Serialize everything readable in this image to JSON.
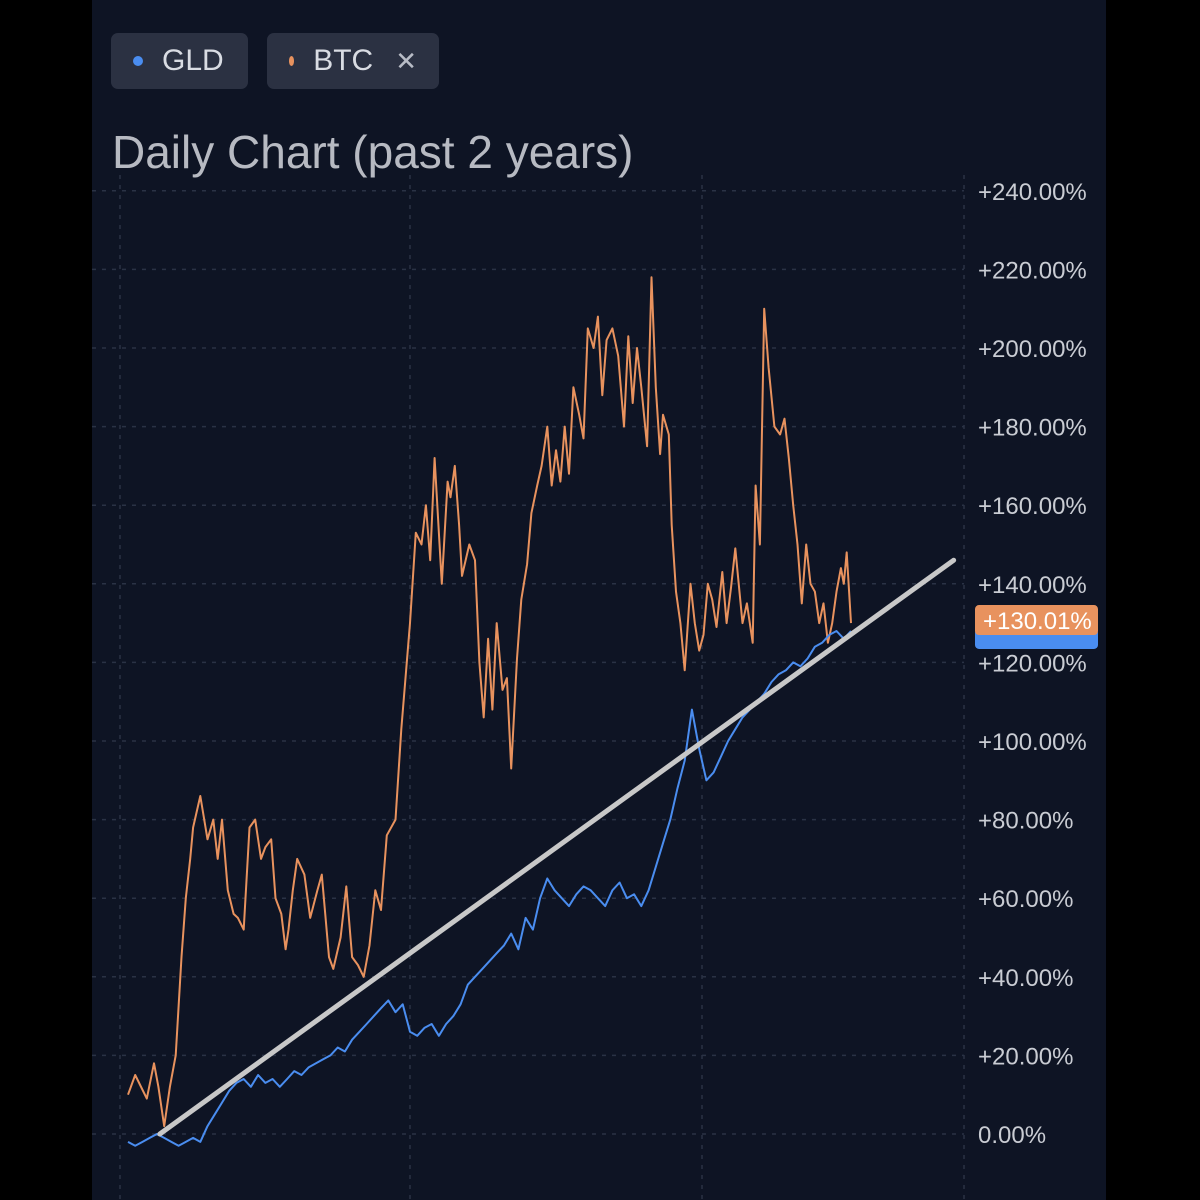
{
  "chips": [
    {
      "label": "GLD",
      "color": "#4a8df0",
      "removable": false
    },
    {
      "label": "BTC",
      "color": "#e8925e",
      "removable": true,
      "close_icon": "close-icon"
    }
  ],
  "chart_data": {
    "type": "line",
    "title": "Daily Chart (past 2 years)",
    "xlabel": "",
    "ylabel": "",
    "x_unit": "trading day index over past 2 years (0 = start, 500 = latest)",
    "x_range": [
      0,
      500
    ],
    "ylim": [
      -5,
      250
    ],
    "y_ticks": [
      "0.00%",
      "+20.00%",
      "+40.00%",
      "+60.00%",
      "+80.00%",
      "+100.00%",
      "+120.00%",
      "+140.00%",
      "+160.00%",
      "+180.00%",
      "+200.00%",
      "+220.00%",
      "+240.00%"
    ],
    "y_tick_values": [
      0,
      20,
      40,
      60,
      80,
      100,
      120,
      140,
      160,
      180,
      200,
      220,
      240
    ],
    "grid": true,
    "legend": "top-left chips",
    "series": [
      {
        "name": "BTC",
        "color": "#e8925e",
        "x": [
          0,
          5,
          13,
          18,
          21,
          25,
          29,
          33,
          37,
          40,
          43,
          45,
          50,
          55,
          59,
          62,
          65,
          69,
          73,
          76,
          80,
          84,
          88,
          92,
          95,
          99,
          102,
          106,
          109,
          111,
          114,
          117,
          122,
          126,
          131,
          134,
          139,
          142,
          147,
          151,
          155,
          159,
          163,
          167,
          171,
          175,
          179,
          185,
          189,
          195,
          199,
          203,
          206,
          209,
          212,
          217,
          221,
          223,
          226,
          229,
          231,
          236,
          240,
          243,
          246,
          249,
          252,
          255,
          259,
          262,
          265,
          269,
          272,
          276,
          279,
          283,
          286,
          290,
          293,
          296,
          299,
          302,
          305,
          308,
          312,
          315,
          318,
          322,
          325,
          328,
          331,
          335,
          339,
          343,
          346,
          349,
          352,
          355,
          359,
          362,
          365,
          368,
          370,
          374,
          376,
          379,
          382,
          385,
          389,
          392,
          395,
          398,
          401,
          404,
          407,
          411,
          414,
          417,
          420,
          425,
          428,
          432,
          434,
          437,
          440,
          443,
          447,
          451,
          454,
          457,
          460,
          463,
          466,
          469,
          472,
          475,
          478,
          481,
          484,
          487,
          490,
          493,
          495,
          497,
          500
        ],
        "values": [
          10,
          15,
          9,
          18,
          12,
          2,
          12,
          20,
          45,
          60,
          70,
          78,
          86,
          75,
          80,
          70,
          80,
          62,
          56,
          55,
          52,
          78,
          80,
          70,
          73,
          75,
          60,
          56,
          47,
          52,
          62,
          70,
          66,
          55,
          62,
          66,
          45,
          42,
          50,
          63,
          45,
          43,
          40,
          48,
          62,
          57,
          76,
          80,
          103,
          130,
          153,
          150,
          160,
          146,
          172,
          140,
          166,
          162,
          170,
          155,
          142,
          150,
          146,
          120,
          106,
          126,
          108,
          130,
          113,
          116,
          93,
          121,
          136,
          145,
          158,
          165,
          170,
          180,
          165,
          174,
          166,
          180,
          168,
          190,
          183,
          177,
          205,
          200,
          208,
          188,
          202,
          205,
          198,
          180,
          203,
          186,
          200,
          190,
          175,
          218,
          190,
          173,
          183,
          178,
          155,
          138,
          130,
          118,
          140,
          130,
          123,
          127,
          140,
          136,
          129,
          143,
          130,
          139,
          149,
          130,
          135,
          125,
          165,
          150,
          210,
          195,
          180,
          178,
          182,
          172,
          160,
          150,
          135,
          150,
          140,
          138,
          130,
          135,
          125,
          130,
          138,
          144,
          140,
          148,
          130
        ]
      },
      {
        "name": "GLD",
        "color": "#4a8df0",
        "x": [
          0,
          5,
          10,
          15,
          20,
          25,
          30,
          35,
          40,
          45,
          50,
          55,
          60,
          65,
          70,
          75,
          80,
          85,
          90,
          95,
          100,
          105,
          110,
          115,
          120,
          125,
          130,
          135,
          140,
          145,
          150,
          155,
          160,
          165,
          170,
          175,
          180,
          185,
          190,
          195,
          200,
          205,
          210,
          215,
          220,
          225,
          230,
          235,
          240,
          245,
          250,
          255,
          260,
          265,
          270,
          275,
          280,
          285,
          290,
          295,
          300,
          305,
          310,
          315,
          320,
          325,
          330,
          335,
          340,
          345,
          350,
          355,
          360,
          365,
          370,
          375,
          380,
          385,
          390,
          395,
          400,
          405,
          410,
          415,
          420,
          425,
          430,
          435,
          440,
          445,
          450,
          455,
          460,
          465,
          470,
          475,
          480,
          485,
          490,
          495,
          500
        ],
        "values": [
          -2,
          -3,
          -2,
          -1,
          0,
          -1,
          -2,
          -3,
          -2,
          -1,
          -2,
          2,
          5,
          8,
          11,
          13,
          14,
          12,
          15,
          13,
          14,
          12,
          14,
          16,
          15,
          17,
          18,
          19,
          20,
          22,
          21,
          24,
          26,
          28,
          30,
          32,
          34,
          31,
          33,
          26,
          25,
          27,
          28,
          25,
          28,
          30,
          33,
          38,
          40,
          42,
          44,
          46,
          48,
          51,
          47,
          55,
          52,
          60,
          65,
          62,
          60,
          58,
          61,
          63,
          62,
          60,
          58,
          62,
          64,
          60,
          61,
          58,
          62,
          68,
          74,
          80,
          88,
          95,
          108,
          98,
          90,
          92,
          96,
          100,
          103,
          106,
          108,
          110,
          112,
          115,
          117,
          118,
          120,
          119,
          121,
          124,
          125,
          127,
          128,
          126,
          128
        ]
      }
    ],
    "trendline": {
      "color": "#c8c8c8",
      "x": [
        22,
        571
      ],
      "y": [
        0,
        146
      ]
    },
    "last_value_badges": [
      {
        "label": "+130.01%",
        "value": 130.01,
        "color": "#e8925e"
      },
      {
        "value": 128,
        "color": "#4a8df0"
      }
    ]
  }
}
